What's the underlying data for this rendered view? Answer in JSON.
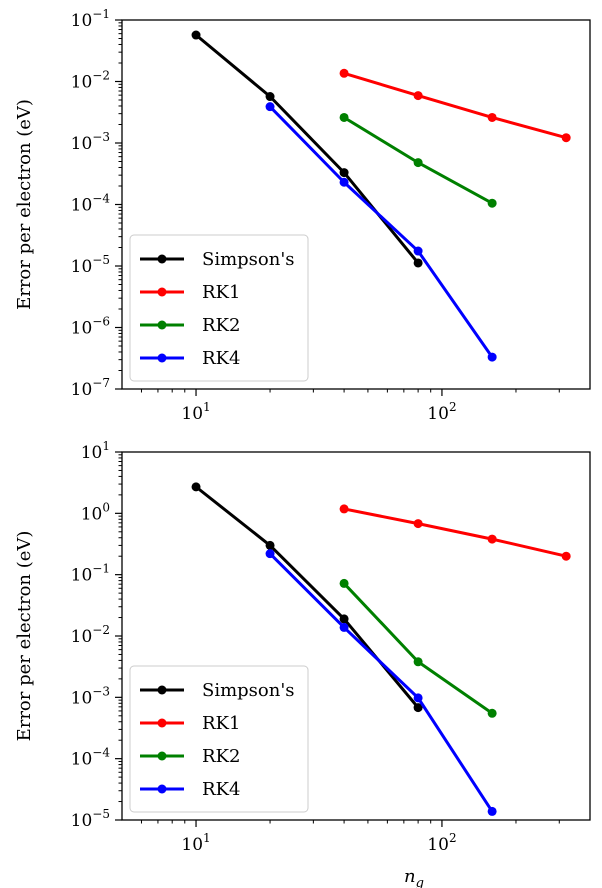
{
  "chart_data": [
    {
      "type": "line",
      "xscale": "log",
      "yscale": "log",
      "xlim": [
        5,
        400
      ],
      "ylim": [
        1e-07,
        0.1
      ],
      "xticks": [
        {
          "base": "10",
          "exp": "1",
          "value": 10
        },
        {
          "base": "10",
          "exp": "2",
          "value": 100
        }
      ],
      "yticks": [
        {
          "base": "10",
          "exp": "−7",
          "value": 1e-07
        },
        {
          "base": "10",
          "exp": "−6",
          "value": 1e-06
        },
        {
          "base": "10",
          "exp": "−5",
          "value": 1e-05
        },
        {
          "base": "10",
          "exp": "−4",
          "value": 0.0001
        },
        {
          "base": "10",
          "exp": "−3",
          "value": 0.001
        },
        {
          "base": "10",
          "exp": "−2",
          "value": 0.01
        },
        {
          "base": "10",
          "exp": "−1",
          "value": 0.1
        }
      ],
      "ylabel": "Error per electron (eV)",
      "xlabel": "",
      "grid": false,
      "legend": "lower-left",
      "series": [
        {
          "name": "Simpson's",
          "color": "#000000",
          "x": [
            10,
            20,
            40,
            80
          ],
          "y": [
            0.057,
            0.0057,
            0.00033,
            1.12e-05
          ]
        },
        {
          "name": "RK1",
          "color": "#ff0000",
          "x": [
            40,
            80,
            160,
            320
          ],
          "y": [
            0.0136,
            0.0059,
            0.0026,
            0.00122
          ]
        },
        {
          "name": "RK2",
          "color": "#008000",
          "x": [
            40,
            80,
            160
          ],
          "y": [
            0.0026,
            0.00048,
            0.000105
          ]
        },
        {
          "name": "RK4",
          "color": "#0000ff",
          "x": [
            20,
            40,
            80,
            160
          ],
          "y": [
            0.0039,
            0.00023,
            1.75e-05,
            3.3e-07
          ]
        }
      ]
    },
    {
      "type": "line",
      "xscale": "log",
      "yscale": "log",
      "xlim": [
        5,
        400
      ],
      "ylim": [
        1e-05,
        10
      ],
      "xticks": [
        {
          "base": "10",
          "exp": "1",
          "value": 10
        },
        {
          "base": "10",
          "exp": "2",
          "value": 100
        }
      ],
      "yticks": [
        {
          "base": "10",
          "exp": "−5",
          "value": 1e-05
        },
        {
          "base": "10",
          "exp": "−4",
          "value": 0.0001
        },
        {
          "base": "10",
          "exp": "−3",
          "value": 0.001
        },
        {
          "base": "10",
          "exp": "−2",
          "value": 0.01
        },
        {
          "base": "10",
          "exp": "−1",
          "value": 0.1
        },
        {
          "base": "10",
          "exp": "0",
          "value": 1
        },
        {
          "base": "10",
          "exp": "1",
          "value": 10
        }
      ],
      "ylabel": "Error per electron (eV)",
      "xlabel": "n_g",
      "xlabel_main": "n",
      "xlabel_sub": "g",
      "grid": false,
      "legend": "lower-left",
      "series": [
        {
          "name": "Simpson's",
          "color": "#000000",
          "x": [
            10,
            20,
            40,
            80
          ],
          "y": [
            2.7,
            0.3,
            0.019,
            0.00068
          ]
        },
        {
          "name": "RK1",
          "color": "#ff0000",
          "x": [
            40,
            80,
            160,
            320
          ],
          "y": [
            1.18,
            0.68,
            0.38,
            0.2
          ]
        },
        {
          "name": "RK2",
          "color": "#008000",
          "x": [
            40,
            80,
            160
          ],
          "y": [
            0.072,
            0.0038,
            0.00055
          ]
        },
        {
          "name": "RK4",
          "color": "#0000ff",
          "x": [
            20,
            40,
            80,
            160
          ],
          "y": [
            0.22,
            0.0138,
            0.00098,
            1.38e-05
          ]
        }
      ]
    }
  ]
}
